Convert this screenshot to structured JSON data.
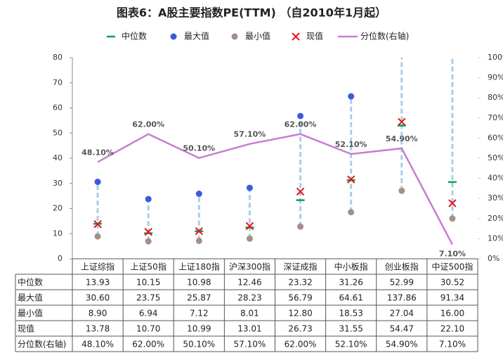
{
  "chart_data": {
    "type": "scatter",
    "title": "图表6：A股主要指数PE(TTM) （自2010年1月起）",
    "categories": [
      "上证综指",
      "上证50指",
      "上证180指",
      "沪深300指",
      "深证成指",
      "中小板指",
      "创业板指",
      "中证500指"
    ],
    "series": [
      {
        "name": "中位数",
        "color": "#00a651",
        "marker": "dash",
        "values": [
          13.93,
          10.15,
          10.98,
          12.46,
          23.32,
          31.26,
          52.99,
          30.52
        ],
        "value_labels": [
          "13.93",
          "10.15",
          "10.98",
          "12.46",
          "23.32",
          "31.26",
          "52.99",
          "30.52"
        ]
      },
      {
        "name": "最大值",
        "color": "#3b5bdb",
        "marker": "circle",
        "values": [
          30.6,
          23.75,
          25.87,
          28.23,
          56.79,
          64.61,
          137.86,
          91.34
        ],
        "value_labels": [
          "30.60",
          "23.75",
          "25.87",
          "28.23",
          "56.79",
          "64.61",
          "137.86",
          "91.34"
        ]
      },
      {
        "name": "最小值",
        "color": "#a39088",
        "marker": "circle",
        "values": [
          8.9,
          6.94,
          7.12,
          8.01,
          12.8,
          18.53,
          27.04,
          16.0
        ],
        "value_labels": [
          "8.90",
          "6.94",
          "7.12",
          "8.01",
          "12.80",
          "18.53",
          "27.04",
          "16.00"
        ]
      },
      {
        "name": "现值",
        "color": "#e8141c",
        "marker": "x",
        "values": [
          13.78,
          10.7,
          10.99,
          13.01,
          26.73,
          31.55,
          54.47,
          22.1
        ],
        "value_labels": [
          "13.78",
          "10.70",
          "10.99",
          "13.01",
          "26.73",
          "31.55",
          "54.47",
          "22.10"
        ]
      },
      {
        "name": "分位数(右轴)",
        "color": "#c77dd1",
        "marker": "line",
        "axis": "y2",
        "values": [
          48.1,
          62.0,
          50.1,
          57.1,
          62.0,
          52.1,
          54.9,
          7.1
        ],
        "value_labels": [
          "48.10%",
          "62.00%",
          "50.10%",
          "57.10%",
          "62.00%",
          "52.10%",
          "54.90%",
          "7.10%"
        ]
      }
    ],
    "range_color": "#a8cdea",
    "ylim": [
      0,
      80
    ],
    "yticks": [
      0,
      10,
      20,
      30,
      40,
      50,
      60,
      70,
      80
    ],
    "y2lim": [
      0,
      100
    ],
    "y2ticks": [
      {
        "value": 0,
        "label": "0%"
      },
      {
        "value": 10,
        "label": "10%"
      },
      {
        "value": 20,
        "label": "20%"
      },
      {
        "value": 30,
        "label": "30%"
      },
      {
        "value": 40,
        "label": "40%"
      },
      {
        "value": 50,
        "label": "50%"
      },
      {
        "value": 60,
        "label": "60%"
      },
      {
        "value": 70,
        "label": "70%"
      },
      {
        "value": 80,
        "label": "80%"
      },
      {
        "value": 90,
        "label": "90%"
      },
      {
        "value": 100,
        "label": "100%"
      }
    ]
  }
}
